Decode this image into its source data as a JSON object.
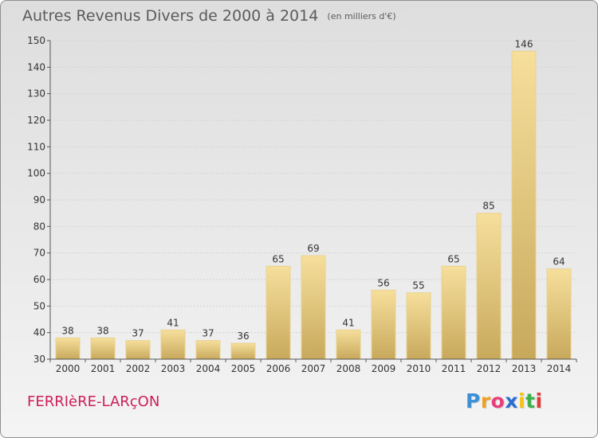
{
  "title": {
    "main": "Autres Revenus Divers de 2000 à 2014",
    "unit": "(en milliers d'€)"
  },
  "commune": "FERRIèRE-LARçON",
  "logo": {
    "letters": [
      "P",
      "r",
      "o",
      "x",
      "i",
      "t",
      "i"
    ],
    "colors": [
      "#3a8fd6",
      "#f0a020",
      "#e83f7a",
      "#2b6fd0",
      "#f2c318",
      "#3fb04a",
      "#e23a3a"
    ]
  },
  "colors": {
    "bar_top": "#f6df9c",
    "bar_bottom": "#c8a95c",
    "bar_edge": "#e9d28e",
    "text": "#333333",
    "grid": "#d3d3d3",
    "axis": "#555555"
  },
  "chart_data": {
    "type": "bar",
    "categories": [
      "2000",
      "2001",
      "2002",
      "2003",
      "2004",
      "2005",
      "2006",
      "2007",
      "2008",
      "2009",
      "2010",
      "2011",
      "2012",
      "2013",
      "2014"
    ],
    "values": [
      38,
      38,
      37,
      41,
      37,
      36,
      65,
      69,
      41,
      56,
      55,
      65,
      85,
      146,
      64
    ],
    "data_labels": [
      "38",
      "38",
      "37",
      "41",
      "37",
      "36",
      "65",
      "69",
      "41",
      "56",
      "55",
      "65",
      "85",
      "146",
      "64"
    ],
    "yticks": [
      "30",
      "40",
      "50",
      "60",
      "70",
      "80",
      "90",
      "100",
      "110",
      "120",
      "130",
      "140",
      "150"
    ],
    "title": "Autres Revenus Divers de 2000 à 2014",
    "ylim": [
      30,
      150
    ],
    "grid": true,
    "legend": "none"
  }
}
